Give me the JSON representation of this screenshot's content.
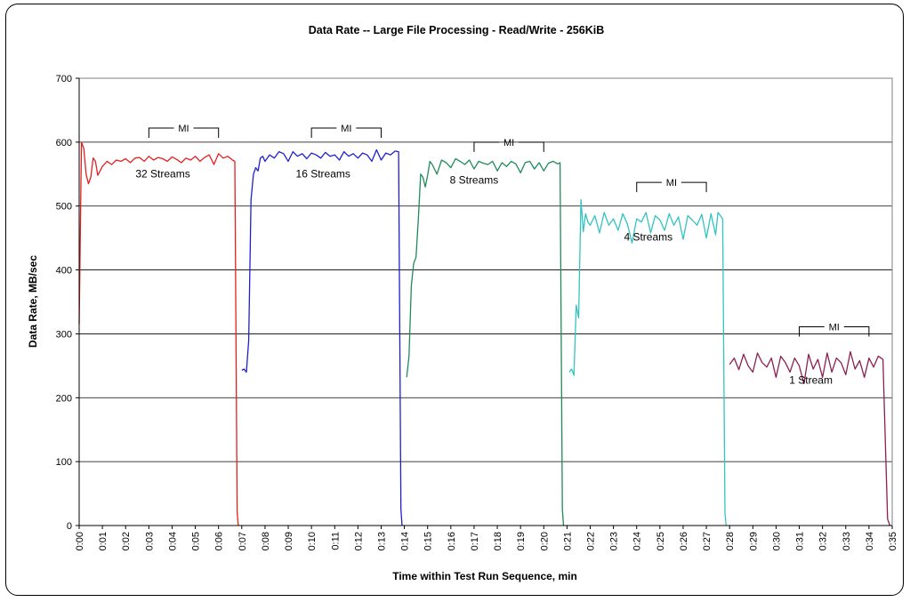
{
  "chart_data": {
    "type": "line",
    "title": "Data Rate -- Large File Processing - Read/Write - 256KiB",
    "xlabel": "Time within Test Run Sequence, min",
    "ylabel": "Data Rate, MB/sec",
    "xlim": [
      0,
      35
    ],
    "ylim": [
      0,
      700
    ],
    "y_ticks": [
      0,
      100,
      200,
      300,
      400,
      500,
      600,
      700
    ],
    "x_tick_labels": [
      "0:00",
      "0:01",
      "0:02",
      "0:03",
      "0:04",
      "0:05",
      "0:06",
      "0:07",
      "0:08",
      "0:09",
      "0:10",
      "0:11",
      "0:12",
      "0:13",
      "0:14",
      "0:15",
      "0:16",
      "0:17",
      "0:18",
      "0:19",
      "0:20",
      "0:21",
      "0:22",
      "0:23",
      "0:24",
      "0:25",
      "0:26",
      "0:27",
      "0:28",
      "0:29",
      "0:30",
      "0:31",
      "0:32",
      "0:33",
      "0:34",
      "0:35"
    ],
    "grid": "horizontal",
    "series": [
      {
        "label": "32 Streams",
        "color": "#e4201f",
        "label_at": [
          3.6,
          545
        ],
        "x": [
          0.0,
          0.1,
          0.2,
          0.3,
          0.4,
          0.5,
          0.6,
          0.7,
          0.8,
          0.9,
          1.0,
          1.2,
          1.4,
          1.6,
          1.8,
          2.0,
          2.2,
          2.4,
          2.6,
          2.8,
          3.0,
          3.2,
          3.4,
          3.6,
          3.8,
          4.0,
          4.2,
          4.4,
          4.6,
          4.8,
          5.0,
          5.2,
          5.4,
          5.6,
          5.8,
          6.0,
          6.2,
          6.4,
          6.6,
          6.7,
          6.8,
          6.85
        ],
        "y": [
          315,
          600,
          590,
          550,
          535,
          545,
          575,
          570,
          548,
          555,
          562,
          570,
          565,
          572,
          570,
          574,
          568,
          575,
          576,
          570,
          578,
          572,
          576,
          574,
          570,
          577,
          573,
          568,
          575,
          572,
          578,
          570,
          576,
          580,
          565,
          582,
          575,
          578,
          572,
          570,
          20,
          0
        ]
      },
      {
        "label": "16 Streams",
        "color": "#1f1fd0",
        "label_at": [
          10.5,
          545
        ],
        "x": [
          7.0,
          7.1,
          7.2,
          7.3,
          7.4,
          7.5,
          7.6,
          7.7,
          7.8,
          7.9,
          8.0,
          8.2,
          8.4,
          8.6,
          8.8,
          9.0,
          9.2,
          9.4,
          9.6,
          9.8,
          10.0,
          10.2,
          10.4,
          10.6,
          10.8,
          11.0,
          11.2,
          11.4,
          11.6,
          11.8,
          12.0,
          12.2,
          12.4,
          12.6,
          12.8,
          13.0,
          13.2,
          13.4,
          13.6,
          13.75,
          13.85,
          13.9
        ],
        "y": [
          243,
          245,
          240,
          290,
          510,
          550,
          560,
          555,
          575,
          578,
          570,
          580,
          575,
          585,
          582,
          570,
          585,
          578,
          582,
          574,
          583,
          580,
          575,
          584,
          578,
          580,
          572,
          585,
          578,
          582,
          575,
          583,
          580,
          570,
          588,
          572,
          583,
          580,
          586,
          585,
          25,
          0
        ]
      },
      {
        "label": "8 Streams",
        "color": "#218a5a",
        "label_at": [
          17.0,
          535
        ],
        "x": [
          14.1,
          14.2,
          14.3,
          14.4,
          14.5,
          14.6,
          14.7,
          14.8,
          14.9,
          15.0,
          15.1,
          15.2,
          15.4,
          15.6,
          15.8,
          16.0,
          16.2,
          16.4,
          16.6,
          16.8,
          17.0,
          17.2,
          17.4,
          17.6,
          17.8,
          18.0,
          18.2,
          18.4,
          18.6,
          18.8,
          19.0,
          19.2,
          19.4,
          19.6,
          19.8,
          20.0,
          20.2,
          20.4,
          20.6,
          20.7,
          20.8,
          20.85
        ],
        "y": [
          232,
          265,
          375,
          410,
          420,
          480,
          550,
          545,
          530,
          548,
          570,
          565,
          550,
          572,
          568,
          560,
          574,
          570,
          565,
          572,
          558,
          570,
          567,
          565,
          570,
          555,
          568,
          562,
          570,
          566,
          552,
          568,
          570,
          558,
          568,
          555,
          567,
          570,
          566,
          568,
          25,
          0
        ]
      },
      {
        "label": "4 Streams",
        "color": "#33c4c0",
        "label_at": [
          24.5,
          446
        ],
        "x": [
          21.1,
          21.2,
          21.3,
          21.4,
          21.5,
          21.6,
          21.7,
          21.8,
          21.9,
          22.0,
          22.2,
          22.4,
          22.6,
          22.8,
          23.0,
          23.2,
          23.4,
          23.6,
          23.8,
          24.0,
          24.2,
          24.4,
          24.6,
          24.8,
          25.0,
          25.2,
          25.4,
          25.6,
          25.8,
          26.0,
          26.2,
          26.4,
          26.6,
          26.8,
          27.0,
          27.2,
          27.4,
          27.5,
          27.6,
          27.7,
          27.8,
          27.85
        ],
        "y": [
          240,
          245,
          235,
          345,
          325,
          510,
          460,
          488,
          475,
          470,
          485,
          458,
          490,
          470,
          480,
          462,
          488,
          472,
          442,
          480,
          475,
          490,
          458,
          485,
          478,
          462,
          488,
          470,
          483,
          448,
          485,
          478,
          470,
          487,
          450,
          488,
          455,
          490,
          485,
          480,
          20,
          0
        ]
      },
      {
        "label": "1 Stream",
        "color": "#8b1f4f",
        "label_at": [
          31.5,
          222
        ],
        "x": [
          28.0,
          28.2,
          28.4,
          28.6,
          28.8,
          29.0,
          29.2,
          29.4,
          29.6,
          29.8,
          30.0,
          30.2,
          30.4,
          30.6,
          30.8,
          31.0,
          31.2,
          31.4,
          31.6,
          31.8,
          32.0,
          32.2,
          32.4,
          32.6,
          32.8,
          33.0,
          33.2,
          33.4,
          33.6,
          33.8,
          34.0,
          34.2,
          34.4,
          34.6,
          34.8,
          34.9
        ],
        "y": [
          252,
          262,
          244,
          268,
          250,
          240,
          270,
          255,
          248,
          262,
          232,
          265,
          255,
          240,
          262,
          250,
          222,
          268,
          245,
          260,
          232,
          270,
          240,
          262,
          255,
          236,
          272,
          245,
          258,
          232,
          262,
          248,
          265,
          260,
          10,
          0
        ]
      }
    ],
    "annotations": [
      {
        "text": "MI",
        "x_start": 3.0,
        "x_end": 6.0,
        "y": 622
      },
      {
        "text": "MI",
        "x_start": 10.0,
        "x_end": 13.0,
        "y": 622
      },
      {
        "text": "MI",
        "x_start": 17.0,
        "x_end": 20.0,
        "y": 600
      },
      {
        "text": "MI",
        "x_start": 24.0,
        "x_end": 27.0,
        "y": 537
      },
      {
        "text": "MI",
        "x_start": 31.0,
        "x_end": 34.0,
        "y": 311
      }
    ]
  }
}
